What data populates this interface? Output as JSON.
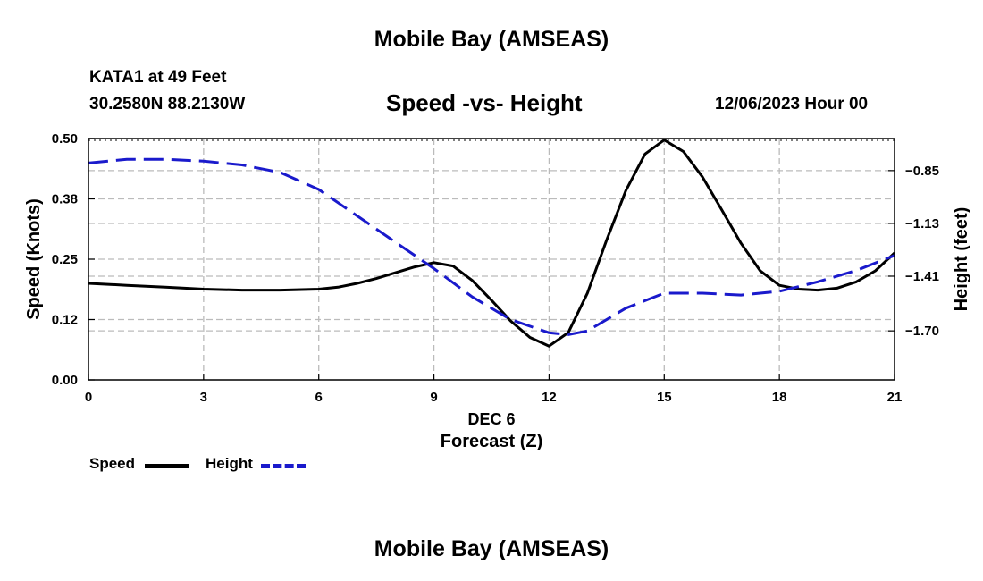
{
  "header": {
    "title": "Mobile Bay (AMSEAS)",
    "station": "KATA1 at 49 Feet",
    "coords": "30.2580N  88.2130W",
    "datetime": "12/06/2023 Hour 00"
  },
  "footer": {
    "title": "Mobile Bay (AMSEAS)"
  },
  "legend": {
    "speed_label": "Speed",
    "height_label": "Height"
  },
  "colors": {
    "speed": "#000000",
    "height": "#1a1acc",
    "grid": "#bbbbbb"
  },
  "chart_data": {
    "type": "line",
    "title": "Speed -vs- Height",
    "xlabel_day": "DEC 6",
    "xlabel": "Forecast (Z)",
    "ylabel_left": "Speed (Knots)",
    "ylabel_right": "Height (feet)",
    "xlim": [
      0,
      21
    ],
    "x_ticks": [
      0,
      3,
      6,
      9,
      12,
      15,
      18,
      21
    ],
    "x_tick_labels": [
      "0",
      "3",
      "6",
      "9",
      "12",
      "15",
      "18",
      "21"
    ],
    "ylim_left": [
      0,
      0.5
    ],
    "y_left_ticks": [
      0,
      0.125,
      0.25,
      0.375,
      0.5
    ],
    "y_left_tick_labels": [
      "0.00",
      "0.12",
      "0.25",
      "0.38",
      "0.50"
    ],
    "ylim_right": [
      -1.96,
      -0.68
    ],
    "y_right_ticks": [
      -0.85,
      -1.13,
      -1.41,
      -1.7
    ],
    "y_right_tick_labels": [
      "-0.85",
      "-1.13",
      "-1.41",
      "-1.70"
    ],
    "series": [
      {
        "name": "Speed",
        "axis": "left",
        "style": "solid",
        "x": [
          0,
          1,
          2,
          3,
          4,
          5,
          6,
          6.5,
          7,
          7.5,
          8,
          8.5,
          9,
          9.5,
          10,
          10.5,
          11,
          11.5,
          12,
          12.5,
          13,
          13.5,
          14,
          14.5,
          15,
          15.5,
          16,
          16.5,
          17,
          17.5,
          18,
          18.5,
          19,
          19.5,
          20,
          20.5,
          21
        ],
        "values": [
          0.2,
          0.196,
          0.192,
          0.188,
          0.186,
          0.186,
          0.188,
          0.192,
          0.2,
          0.21,
          0.222,
          0.234,
          0.243,
          0.236,
          0.206,
          0.165,
          0.122,
          0.088,
          0.07,
          0.098,
          0.18,
          0.29,
          0.392,
          0.468,
          0.497,
          0.473,
          0.42,
          0.352,
          0.283,
          0.226,
          0.196,
          0.188,
          0.186,
          0.19,
          0.203,
          0.226,
          0.263
        ]
      },
      {
        "name": "Height",
        "axis": "right",
        "style": "dashed",
        "x": [
          0,
          1,
          2,
          3,
          4,
          5,
          6,
          7,
          8,
          9,
          10,
          11,
          12,
          12.5,
          13,
          14,
          15,
          16,
          17,
          18,
          19,
          20,
          21
        ],
        "values": [
          -0.81,
          -0.79,
          -0.79,
          -0.8,
          -0.82,
          -0.86,
          -0.95,
          -1.09,
          -1.23,
          -1.37,
          -1.52,
          -1.64,
          -1.71,
          -1.72,
          -1.7,
          -1.58,
          -1.5,
          -1.5,
          -1.51,
          -1.49,
          -1.44,
          -1.38,
          -1.3
        ]
      }
    ]
  }
}
